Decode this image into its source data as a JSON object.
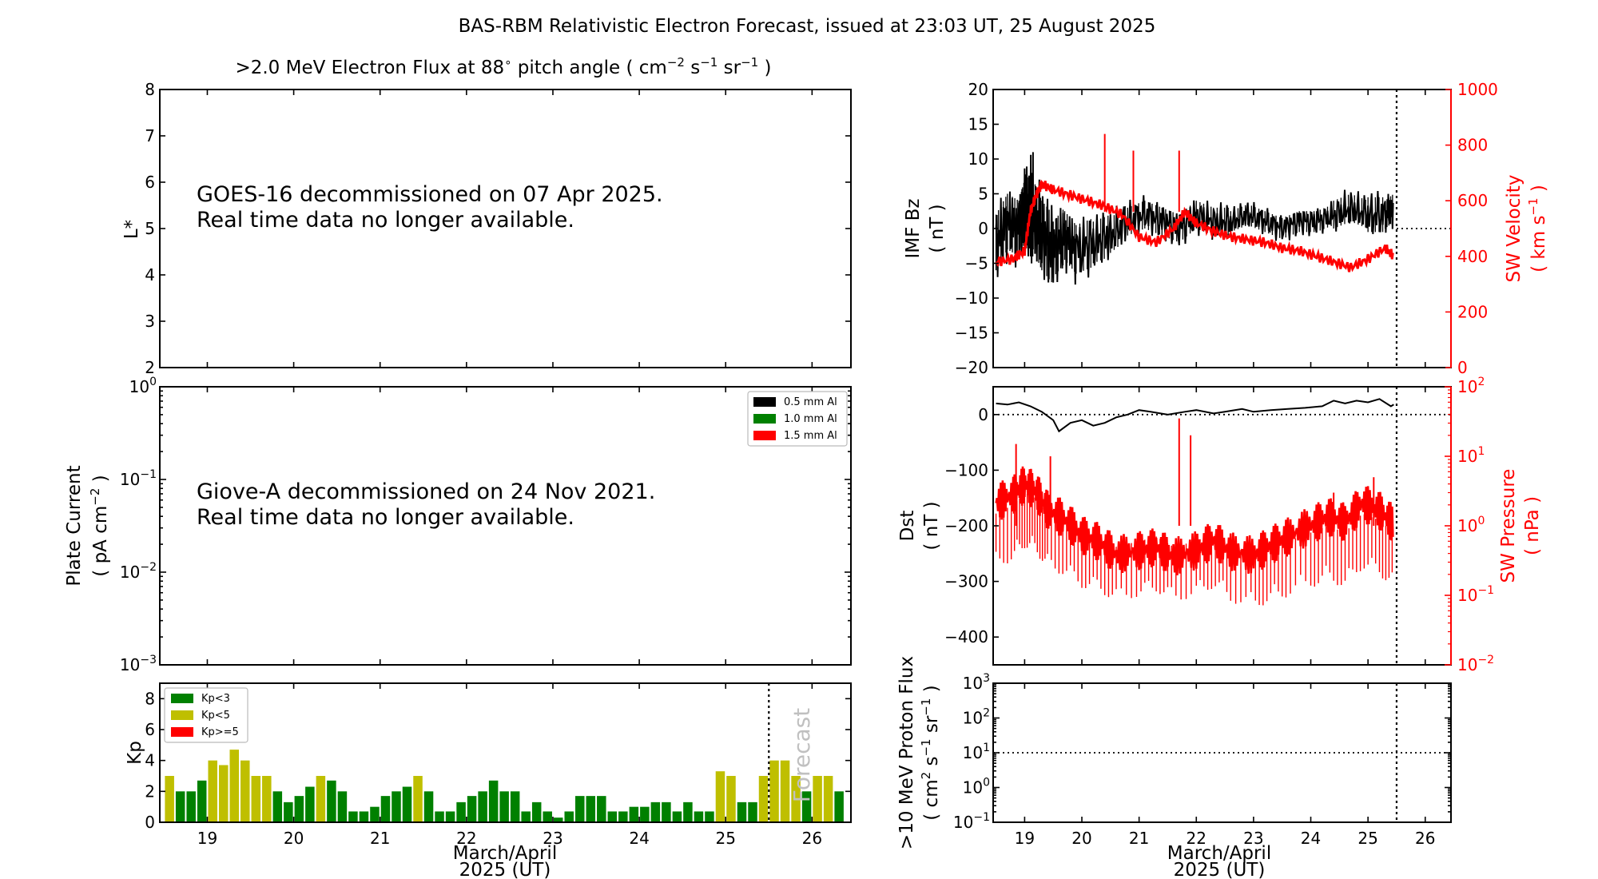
{
  "figure": {
    "title": "BAS-RBM Relativistic Electron Forecast, issued at 23:03 UT, 25 August 2025",
    "x_label_line1": "March/April",
    "x_label_line2": "2025 (UT)",
    "x_ticks": [
      "19",
      "20",
      "21",
      "22",
      "23",
      "24",
      "25",
      "26"
    ]
  },
  "chart_data": [
    {
      "id": "electron-flux",
      "type": "heatmap",
      "title_prefix": ">2.0 MeV Electron Flux at 88",
      "title_suffix": " pitch angle ( cm",
      "ylabel": "L*",
      "ylim": [
        2,
        8
      ],
      "y_ticks": [
        "2",
        "3",
        "4",
        "5",
        "6",
        "7",
        "8"
      ],
      "annotation": [
        "GOES-16 decommissioned on 07 Apr 2025.",
        "Real time data no longer available."
      ],
      "series": []
    },
    {
      "id": "plate-current",
      "type": "line",
      "ylabel_line1": "Plate Current",
      "ylabel_line2": "( pA cm",
      "y_scale": "log",
      "ylim": [
        0.001,
        1
      ],
      "legend_placement": "top-right",
      "legend": [
        {
          "name": "0.5 mm Al",
          "color": "#000000"
        },
        {
          "name": "1.0 mm Al",
          "color": "#008000"
        },
        {
          "name": "1.5 mm Al",
          "color": "#ff0000"
        }
      ],
      "annotation": [
        "Giove-A decommissioned on 24 Nov 2021.",
        "Real time data no longer available."
      ],
      "series": []
    },
    {
      "id": "kp",
      "type": "bar",
      "ylabel": "Kp",
      "ylim": [
        0,
        9
      ],
      "y_ticks": [
        "0",
        "2",
        "4",
        "6",
        "8"
      ],
      "legend_placement": "top-left",
      "legend": [
        {
          "name": "Kp<3",
          "color": "#008000"
        },
        {
          "name": "Kp<5",
          "color": "#bfbf00"
        },
        {
          "name": "Kp>=5",
          "color": "#ff0000"
        }
      ],
      "forecast_label": "Forecast",
      "forecast_start_day": 25.5,
      "bar_width_days": 0.125,
      "first_bar_start_day": 18.5,
      "values": [
        3.0,
        2.0,
        2.0,
        2.7,
        4.0,
        3.7,
        4.7,
        4.0,
        3.0,
        3.0,
        2.0,
        1.3,
        1.7,
        2.3,
        3.0,
        2.7,
        2.0,
        0.7,
        0.7,
        1.0,
        1.7,
        2.0,
        2.3,
        3.0,
        2.0,
        0.7,
        0.7,
        1.3,
        1.7,
        2.0,
        2.7,
        2.0,
        2.0,
        0.7,
        1.3,
        0.7,
        0.3,
        0.7,
        1.7,
        1.7,
        1.7,
        0.7,
        0.7,
        1.0,
        1.0,
        1.3,
        1.3,
        0.7,
        1.3,
        0.7,
        0.7,
        3.3,
        3.0,
        1.3,
        1.3,
        3.0,
        4.0,
        4.0,
        3.0,
        2.0,
        3.0,
        3.0,
        2.0
      ]
    },
    {
      "id": "imf-sw-velocity",
      "type": "line",
      "ylabel_line1": "IMF Bz",
      "ylabel_line2": "( nT )",
      "ylim": [
        -20,
        20
      ],
      "y_ticks": [
        "−20",
        "−15",
        "−10",
        "−5",
        "0",
        "5",
        "10",
        "15",
        "20"
      ],
      "y2label_line1": "SW Velocity",
      "y2label_line2": "( km s",
      "y2lim": [
        0,
        1000
      ],
      "y2_ticks": [
        "0",
        "200",
        "400",
        "600",
        "800",
        "1000"
      ],
      "now_day": 25.5,
      "series": [
        {
          "axis": "left",
          "color": "#000000",
          "x": [
            18.5,
            18.7,
            18.9,
            19.0,
            19.1,
            19.15,
            19.3,
            19.5,
            19.7,
            19.9,
            20.2,
            20.5,
            20.8,
            21.1,
            21.4,
            21.7,
            22.0,
            22.3,
            22.6,
            22.9,
            23.2,
            23.5,
            23.8,
            24.1,
            24.4,
            24.7,
            25.0,
            25.3,
            25.45
          ],
          "y": [
            -2,
            1,
            0,
            3,
            2,
            2,
            -1,
            -3,
            -1,
            -3,
            -2,
            -1,
            1,
            2,
            1,
            0,
            2,
            1,
            1,
            2,
            1,
            0,
            1,
            1,
            2,
            3,
            2,
            2,
            3
          ],
          "spread": [
            8,
            8,
            8,
            10,
            12,
            10,
            10,
            8,
            7,
            7,
            6,
            5,
            4,
            4,
            4,
            4,
            4,
            4,
            3,
            3,
            3,
            3,
            3,
            3,
            4,
            4,
            5,
            4,
            3
          ]
        },
        {
          "axis": "right",
          "color": "#ff0000",
          "x": [
            18.5,
            18.8,
            19.0,
            19.1,
            19.2,
            19.3,
            19.5,
            19.8,
            20.1,
            20.4,
            20.7,
            21.0,
            21.3,
            21.6,
            21.8,
            22.0,
            22.3,
            22.6,
            22.9,
            23.2,
            23.5,
            23.8,
            24.1,
            24.4,
            24.7,
            25.0,
            25.3,
            25.45
          ],
          "y": [
            380,
            390,
            420,
            560,
            620,
            660,
            640,
            620,
            600,
            580,
            550,
            470,
            450,
            500,
            560,
            520,
            490,
            470,
            460,
            450,
            430,
            420,
            400,
            380,
            360,
            390,
            430,
            400
          ],
          "spikes": [
            [
              20.4,
              840
            ],
            [
              20.9,
              780
            ],
            [
              21.7,
              780
            ]
          ]
        }
      ]
    },
    {
      "id": "dst-sw-pressure",
      "type": "line",
      "ylabel_line1": "Dst",
      "ylabel_line2": "( nT )",
      "ylim": [
        -450,
        50
      ],
      "y_ticks": [
        "−400",
        "−300",
        "−200",
        "−100",
        "0"
      ],
      "y2label_line1": "SW Pressure",
      "y2label_line2": "( nPa )",
      "y2_scale": "log",
      "y2lim": [
        0.01,
        100
      ],
      "now_day": 25.5,
      "series": [
        {
          "axis": "left",
          "color": "#000000",
          "x": [
            18.5,
            18.7,
            18.9,
            19.1,
            19.3,
            19.5,
            19.6,
            19.8,
            20.0,
            20.2,
            20.4,
            20.6,
            20.8,
            21.0,
            21.2,
            21.5,
            21.8,
            22.0,
            22.3,
            22.5,
            22.8,
            23.0,
            23.3,
            23.6,
            23.9,
            24.2,
            24.4,
            24.6,
            24.8,
            25.0,
            25.2,
            25.4,
            25.45
          ],
          "y": [
            20,
            18,
            22,
            15,
            5,
            -10,
            -30,
            -15,
            -10,
            -20,
            -15,
            -5,
            0,
            8,
            5,
            0,
            5,
            8,
            2,
            5,
            10,
            5,
            8,
            10,
            12,
            15,
            25,
            20,
            25,
            22,
            28,
            15,
            18
          ]
        },
        {
          "axis": "right",
          "color": "#ff0000",
          "x": [
            18.5,
            18.8,
            19.0,
            19.2,
            19.4,
            19.7,
            20.0,
            20.3,
            20.6,
            21.0,
            21.3,
            21.6,
            22.0,
            22.3,
            22.6,
            23.0,
            23.3,
            23.6,
            24.0,
            24.3,
            24.6,
            24.9,
            25.2,
            25.45
          ],
          "y": [
            1.5,
            2.0,
            3.0,
            2.5,
            1.5,
            1.2,
            0.8,
            0.7,
            0.5,
            0.6,
            0.7,
            0.5,
            0.6,
            0.8,
            0.5,
            0.4,
            0.5,
            0.6,
            0.8,
            1.0,
            0.8,
            1.5,
            1.2,
            0.8
          ],
          "spikes": [
            [
              18.85,
              15
            ],
            [
              19.45,
              10
            ],
            [
              21.7,
              35
            ],
            [
              21.9,
              20
            ],
            [
              24.4,
              3
            ],
            [
              25.1,
              5
            ]
          ]
        }
      ]
    },
    {
      "id": "proton-flux",
      "type": "line",
      "ylabel_line1": ">10 MeV Proton Flux",
      "ylabel_line2": "( cm",
      "y_scale": "log",
      "ylim": [
        0.1,
        1000
      ],
      "threshold": 10,
      "now_day": 25.5,
      "series": []
    }
  ]
}
